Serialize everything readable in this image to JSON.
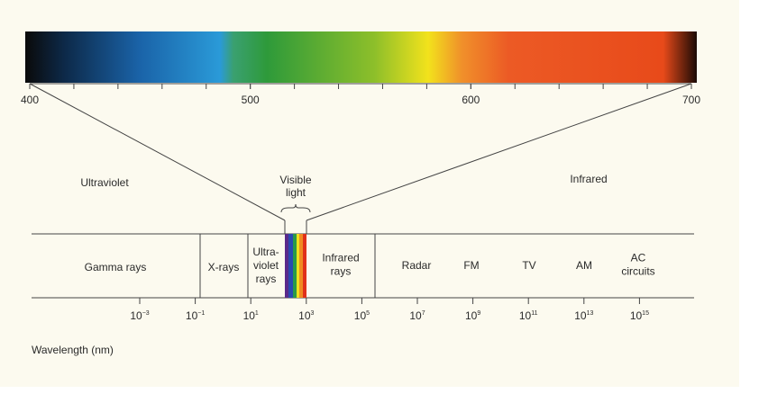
{
  "scale": {
    "ticks": [
      400,
      500,
      600,
      700
    ]
  },
  "regions": {
    "ultraviolet": "Ultraviolet",
    "visible": [
      "Visible",
      "light"
    ],
    "infrared": "Infrared"
  },
  "bands": [
    {
      "lines": [
        "Gamma rays"
      ]
    },
    {
      "lines": [
        "X-rays"
      ]
    },
    {
      "lines": [
        "Ultra-",
        "violet",
        "rays"
      ]
    },
    {
      "lines": [
        "Infrared",
        "rays"
      ]
    },
    {
      "lines": [
        "Radar"
      ]
    },
    {
      "lines": [
        "FM"
      ]
    },
    {
      "lines": [
        "TV"
      ]
    },
    {
      "lines": [
        "AM"
      ]
    },
    {
      "lines": [
        "AC",
        "circuits"
      ]
    }
  ],
  "wavelength_ticks": [
    {
      "base": "10",
      "exponent": "−3"
    },
    {
      "base": "10",
      "exponent": "−1"
    },
    {
      "base": "10",
      "exponent": "1"
    },
    {
      "base": "10",
      "exponent": "3"
    },
    {
      "base": "10",
      "exponent": "5"
    },
    {
      "base": "10",
      "exponent": "7"
    },
    {
      "base": "10",
      "exponent": "9"
    },
    {
      "base": "10",
      "exponent": "11"
    },
    {
      "base": "10",
      "exponent": "13"
    },
    {
      "base": "10",
      "exponent": "15"
    }
  ],
  "axis_label": "Wavelength (nm)"
}
